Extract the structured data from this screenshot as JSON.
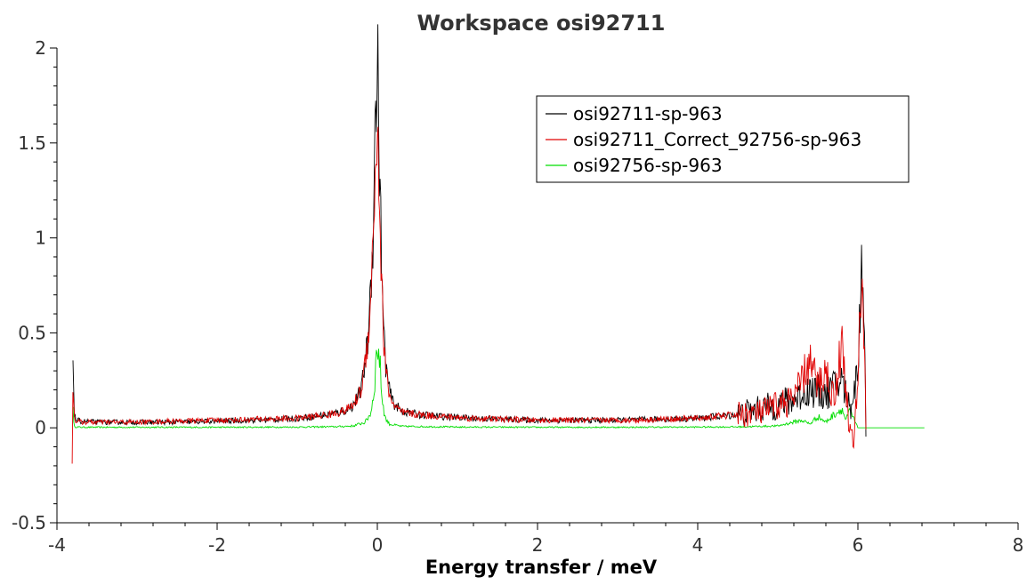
{
  "chart_data": {
    "type": "line",
    "title": "Workspace osi92711",
    "xlabel": "Energy transfer / meV",
    "ylabel": "",
    "xlim": [
      -4,
      8
    ],
    "ylim": [
      -0.5,
      2
    ],
    "xticks": [
      "-4",
      "-2",
      "0",
      "2",
      "4",
      "6",
      "8"
    ],
    "yticks": [
      "-0.5",
      "0",
      "0.5",
      "1",
      "1.5",
      "2"
    ],
    "grid": false,
    "legend_position": "top-right",
    "series": [
      {
        "name": "osi92711-sp-963",
        "color": "#000000",
        "x": [
          -3.8,
          -3.79,
          -3.78,
          -3.76,
          -3.7,
          -3.5,
          -3.0,
          -2.5,
          -2.0,
          -1.5,
          -1.0,
          -0.6,
          -0.4,
          -0.3,
          -0.2,
          -0.12,
          -0.06,
          -0.03,
          0.0,
          0.02,
          0.04,
          0.07,
          0.1,
          0.15,
          0.2,
          0.3,
          0.5,
          0.8,
          1.2,
          2.0,
          3.0,
          4.0,
          4.5,
          4.8,
          5.0,
          5.2,
          5.4,
          5.6,
          5.8,
          5.9,
          6.0,
          6.05,
          6.08,
          6.1
        ],
        "y": [
          0.41,
          0.18,
          0.06,
          0.04,
          0.035,
          0.03,
          0.03,
          0.03,
          0.035,
          0.04,
          0.05,
          0.07,
          0.09,
          0.12,
          0.2,
          0.45,
          0.95,
          1.5,
          1.96,
          1.6,
          1.1,
          0.6,
          0.35,
          0.2,
          0.13,
          0.09,
          0.07,
          0.06,
          0.05,
          0.04,
          0.04,
          0.05,
          0.07,
          0.1,
          0.12,
          0.15,
          0.2,
          0.18,
          0.25,
          0.1,
          0.3,
          0.92,
          0.6,
          0.0
        ]
      },
      {
        "name": "osi92711_Correct_92756-sp-963",
        "color": "#e00000",
        "x": [
          -3.81,
          -3.8,
          -3.79,
          -3.78,
          -3.76,
          -3.7,
          -3.5,
          -3.0,
          -2.5,
          -2.0,
          -1.5,
          -1.0,
          -0.6,
          -0.4,
          -0.3,
          -0.2,
          -0.12,
          -0.06,
          -0.03,
          0.0,
          0.02,
          0.04,
          0.07,
          0.1,
          0.15,
          0.2,
          0.3,
          0.5,
          0.8,
          1.2,
          2.0,
          3.0,
          4.0,
          4.5,
          4.8,
          5.0,
          5.2,
          5.4,
          5.5,
          5.6,
          5.7,
          5.8,
          5.9,
          5.95,
          6.0,
          6.05,
          6.08,
          6.1
        ],
        "y": [
          -0.23,
          0.28,
          0.1,
          0.05,
          0.035,
          0.03,
          0.03,
          0.03,
          0.035,
          0.04,
          0.045,
          0.05,
          0.07,
          0.09,
          0.12,
          0.2,
          0.45,
          0.9,
          1.3,
          1.6,
          1.35,
          0.95,
          0.55,
          0.32,
          0.18,
          0.12,
          0.08,
          0.07,
          0.06,
          0.05,
          0.04,
          0.04,
          0.05,
          0.07,
          0.08,
          0.12,
          0.15,
          0.35,
          0.22,
          0.3,
          0.15,
          0.45,
          -0.03,
          -0.07,
          0.25,
          0.9,
          0.4,
          0.0
        ]
      },
      {
        "name": "osi92756-sp-963",
        "color": "#00dd00",
        "x": [
          -3.8,
          -3.79,
          -3.78,
          -3.7,
          -3.0,
          -2.0,
          -1.0,
          -0.5,
          -0.3,
          -0.15,
          -0.08,
          -0.04,
          0.0,
          0.03,
          0.06,
          0.1,
          0.15,
          0.3,
          1.0,
          2.0,
          3.0,
          4.0,
          4.5,
          5.0,
          5.3,
          5.4,
          5.5,
          5.6,
          5.7,
          5.8,
          5.85,
          5.9,
          6.0,
          6.5,
          6.83
        ],
        "y": [
          0.14,
          0.02,
          0.005,
          0.003,
          0.003,
          0.003,
          0.004,
          0.006,
          0.01,
          0.03,
          0.08,
          0.2,
          0.45,
          0.35,
          0.15,
          0.05,
          0.02,
          0.008,
          0.004,
          0.003,
          0.003,
          0.004,
          0.005,
          0.01,
          0.04,
          0.02,
          0.06,
          0.03,
          0.07,
          0.1,
          0.04,
          0.09,
          0.0,
          0.0,
          0.0
        ]
      }
    ]
  }
}
